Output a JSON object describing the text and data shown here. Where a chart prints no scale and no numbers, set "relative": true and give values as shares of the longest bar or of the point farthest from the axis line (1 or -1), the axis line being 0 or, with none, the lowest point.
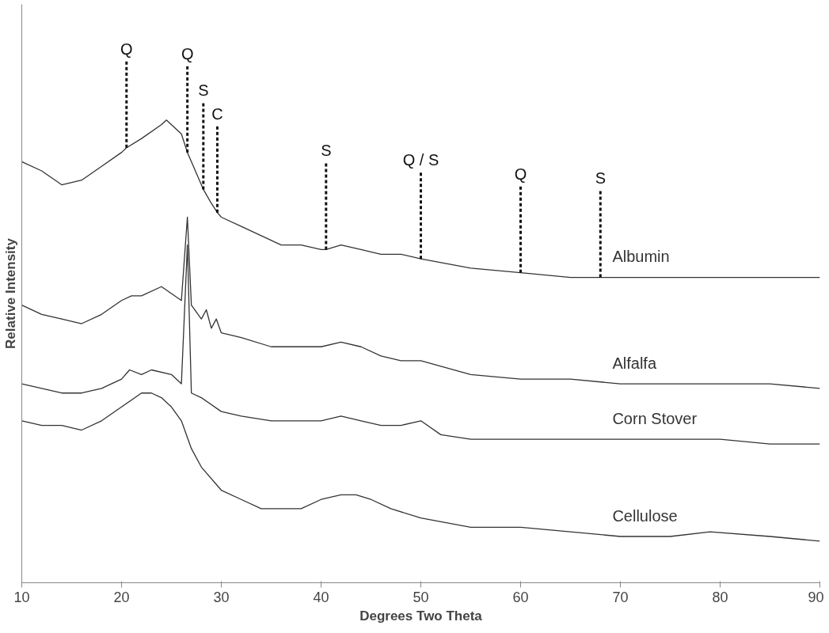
{
  "chart_data": {
    "type": "line",
    "relative": true,
    "xlabel": "Degrees Two Theta",
    "ylabel": "Relative Intensity",
    "xlim": [
      10,
      90
    ],
    "xticks": [
      10,
      20,
      30,
      40,
      50,
      60,
      70,
      80,
      90
    ],
    "grid": false,
    "marker": "none",
    "line_style": "solid",
    "series": [
      {
        "name": "Albumin",
        "color": "#333333",
        "x": [
          10,
          12,
          14,
          16,
          18,
          20,
          20.5,
          22,
          24,
          24.5,
          26,
          26.6,
          27,
          28,
          28.2,
          29,
          29.6,
          30,
          32,
          34,
          36,
          38,
          40,
          40.5,
          42,
          44,
          46,
          48,
          50,
          55,
          60,
          65,
          68,
          70,
          75,
          80,
          85,
          90
        ],
        "values": [
          0.91,
          0.89,
          0.86,
          0.87,
          0.9,
          0.93,
          0.94,
          0.96,
          0.99,
          1.0,
          0.97,
          0.93,
          0.91,
          0.86,
          0.85,
          0.82,
          0.8,
          0.79,
          0.77,
          0.75,
          0.73,
          0.73,
          0.72,
          0.72,
          0.73,
          0.72,
          0.71,
          0.71,
          0.7,
          0.68,
          0.67,
          0.66,
          0.66,
          0.66,
          0.66,
          0.66,
          0.66,
          0.66
        ]
      },
      {
        "name": "Alfalfa",
        "color": "#333333",
        "x": [
          10,
          12,
          14,
          16,
          18,
          20,
          21,
          22,
          24,
          26,
          26.6,
          27,
          28,
          28.5,
          29,
          29.5,
          30,
          32,
          35,
          38,
          40,
          42,
          44,
          46,
          48,
          50,
          55,
          60,
          65,
          70,
          75,
          80,
          85,
          90
        ],
        "values": [
          0.6,
          0.58,
          0.57,
          0.56,
          0.58,
          0.61,
          0.62,
          0.62,
          0.64,
          0.61,
          0.79,
          0.6,
          0.57,
          0.59,
          0.55,
          0.57,
          0.54,
          0.53,
          0.51,
          0.51,
          0.51,
          0.52,
          0.51,
          0.49,
          0.48,
          0.48,
          0.45,
          0.44,
          0.44,
          0.43,
          0.43,
          0.43,
          0.43,
          0.42
        ]
      },
      {
        "name": "Corn Stover",
        "color": "#333333",
        "x": [
          10,
          12,
          14,
          16,
          18,
          20,
          20.8,
          22,
          23,
          25,
          26,
          26.6,
          27,
          28,
          30,
          32,
          35,
          38,
          40,
          42,
          44,
          46,
          48,
          50,
          52,
          55,
          60,
          65,
          70,
          75,
          80,
          85,
          90
        ],
        "values": [
          0.43,
          0.42,
          0.41,
          0.41,
          0.42,
          0.44,
          0.46,
          0.45,
          0.46,
          0.45,
          0.43,
          0.73,
          0.41,
          0.4,
          0.37,
          0.36,
          0.35,
          0.35,
          0.35,
          0.36,
          0.35,
          0.34,
          0.34,
          0.35,
          0.32,
          0.31,
          0.31,
          0.31,
          0.31,
          0.31,
          0.31,
          0.3,
          0.3
        ]
      },
      {
        "name": "Cellulose",
        "color": "#333333",
        "x": [
          10,
          12,
          14,
          16,
          18,
          20,
          22,
          23,
          24,
          25,
          26,
          27,
          28,
          30,
          32,
          34,
          36,
          38,
          40,
          42,
          43.5,
          45,
          47,
          50,
          55,
          60,
          65,
          70,
          75,
          79,
          85,
          90
        ],
        "values": [
          0.35,
          0.34,
          0.34,
          0.33,
          0.35,
          0.38,
          0.41,
          0.41,
          0.4,
          0.38,
          0.35,
          0.29,
          0.25,
          0.2,
          0.18,
          0.16,
          0.16,
          0.16,
          0.18,
          0.19,
          0.19,
          0.18,
          0.16,
          0.14,
          0.12,
          0.12,
          0.11,
          0.1,
          0.1,
          0.11,
          0.1,
          0.09
        ]
      }
    ],
    "annotations": [
      {
        "text": "Q",
        "x": 20.5,
        "y": 0.94
      },
      {
        "text": "Q",
        "x": 26.6,
        "y": 0.93
      },
      {
        "text": "S",
        "x": 28.2,
        "y": 0.85
      },
      {
        "text": "C",
        "x": 29.6,
        "y": 0.8
      },
      {
        "text": "S",
        "x": 40.5,
        "y": 0.72
      },
      {
        "text": "Q / S",
        "x": 50,
        "y": 0.7
      },
      {
        "text": "Q",
        "x": 60,
        "y": 0.67
      },
      {
        "text": "S",
        "x": 68,
        "y": 0.66
      }
    ]
  }
}
